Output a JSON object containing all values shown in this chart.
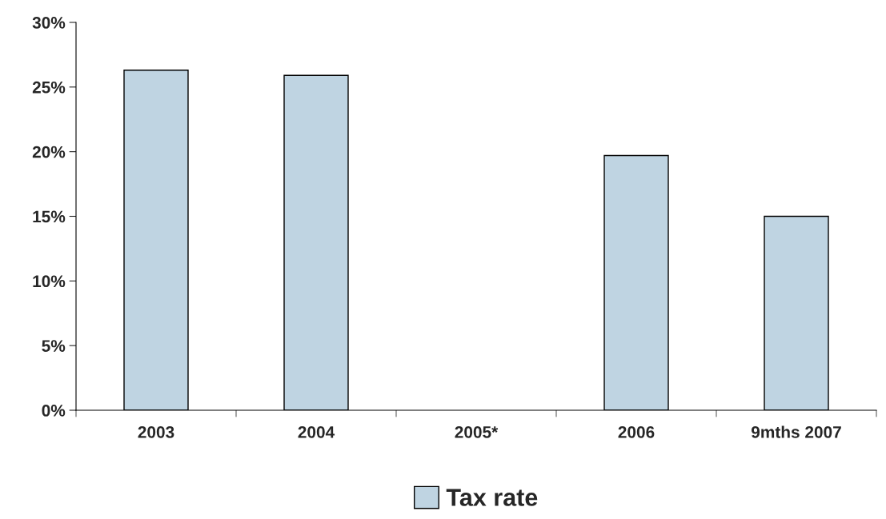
{
  "chart_data": {
    "type": "bar",
    "categories": [
      "2003",
      "2004",
      "2005*",
      "2006",
      "9mths 2007"
    ],
    "series": [
      {
        "name": "Tax rate",
        "color": "#bfd4e2",
        "values": [
          26.3,
          25.9,
          null,
          19.7,
          15.0
        ]
      }
    ],
    "ylim": [
      0,
      30
    ],
    "yticks": [
      {
        "value": 0,
        "label": "0%"
      },
      {
        "value": 5,
        "label": "5%"
      },
      {
        "value": 10,
        "label": "10%"
      },
      {
        "value": 15,
        "label": "15%"
      },
      {
        "value": 20,
        "label": "20%"
      },
      {
        "value": 25,
        "label": "25%"
      },
      {
        "value": 30,
        "label": "30%"
      }
    ],
    "grid": false,
    "legend": "bottom"
  }
}
